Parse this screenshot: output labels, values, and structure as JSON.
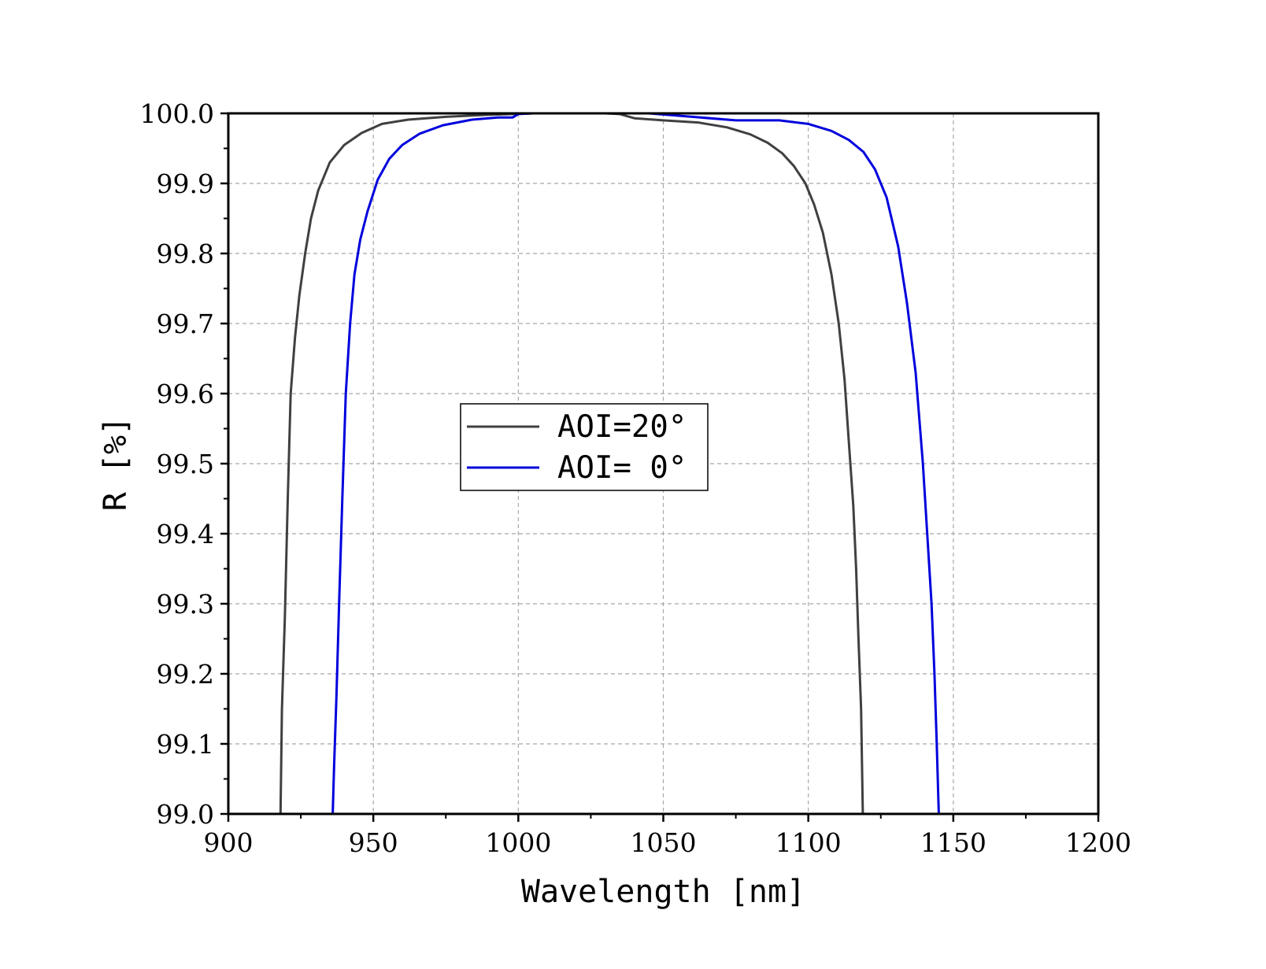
{
  "chart_data": {
    "type": "line",
    "title": "",
    "xlabel": "Wavelength [nm]",
    "ylabel": "R [%]",
    "xlim": [
      900,
      1200
    ],
    "ylim": [
      99.0,
      100.0
    ],
    "x_ticks": [
      "900",
      "950",
      "1000",
      "1050",
      "1100",
      "1150",
      "1200"
    ],
    "y_ticks": [
      "99.0",
      "99.1",
      "99.2",
      "99.3",
      "99.4",
      "99.5",
      "99.6",
      "99.7",
      "99.8",
      "99.9",
      "100.0"
    ],
    "grid": true,
    "legend_position": "center-left",
    "series": [
      {
        "name": "AOI=20°",
        "color": "#404040",
        "x": [
          918.0,
          918.5,
          919.5,
          920.5,
          921.5,
          923.0,
          924.5,
          926.5,
          928.5,
          931.0,
          935.0,
          940.0,
          946.0,
          953.0,
          962.0,
          975.0,
          990.0,
          1005.0,
          1020.0,
          1030.0,
          1035.0,
          1040.0,
          1050.0,
          1062.0,
          1072.0,
          1080.0,
          1086.0,
          1091.0,
          1095.0,
          1099.0,
          1102.0,
          1105.0,
          1108.0,
          1110.5,
          1112.5,
          1114.0,
          1115.5,
          1116.5,
          1117.3,
          1118.2,
          1118.8
        ],
        "y": [
          99.0,
          99.15,
          99.28,
          99.45,
          99.6,
          99.68,
          99.74,
          99.8,
          99.85,
          99.89,
          99.93,
          99.955,
          99.972,
          99.985,
          99.991,
          99.995,
          99.998,
          100.0,
          100.0,
          100.0,
          99.999,
          99.993,
          99.99,
          99.987,
          99.98,
          99.97,
          99.958,
          99.943,
          99.925,
          99.9,
          99.87,
          99.83,
          99.77,
          99.7,
          99.62,
          99.53,
          99.44,
          99.35,
          99.25,
          99.15,
          99.0
        ]
      },
      {
        "name": "AOI= 0°",
        "color": "#0000dd",
        "x": [
          936.0,
          936.5,
          937.3,
          938.2,
          939.3,
          940.5,
          942.0,
          943.5,
          945.5,
          948.0,
          951.5,
          955.5,
          960.0,
          966.0,
          974.0,
          984.0,
          993.0,
          998.0,
          1000.0,
          1005.0,
          1015.0,
          1030.0,
          1045.0,
          1060.0,
          1075.0,
          1090.0,
          1100.0,
          1108.0,
          1114.0,
          1119.0,
          1123.0,
          1127.0,
          1131.0,
          1134.0,
          1137.0,
          1139.5,
          1141.0,
          1142.5,
          1143.5,
          1144.3,
          1145.0
        ],
        "y": [
          99.0,
          99.07,
          99.17,
          99.3,
          99.45,
          99.6,
          99.7,
          99.77,
          99.82,
          99.86,
          99.905,
          99.935,
          99.955,
          99.971,
          99.983,
          99.991,
          99.994,
          99.994,
          99.999,
          100.0,
          100.0,
          100.0,
          100.0,
          99.995,
          99.99,
          99.99,
          99.985,
          99.975,
          99.962,
          99.945,
          99.92,
          99.88,
          99.81,
          99.73,
          99.63,
          99.5,
          99.4,
          99.3,
          99.2,
          99.1,
          99.0
        ]
      }
    ]
  }
}
